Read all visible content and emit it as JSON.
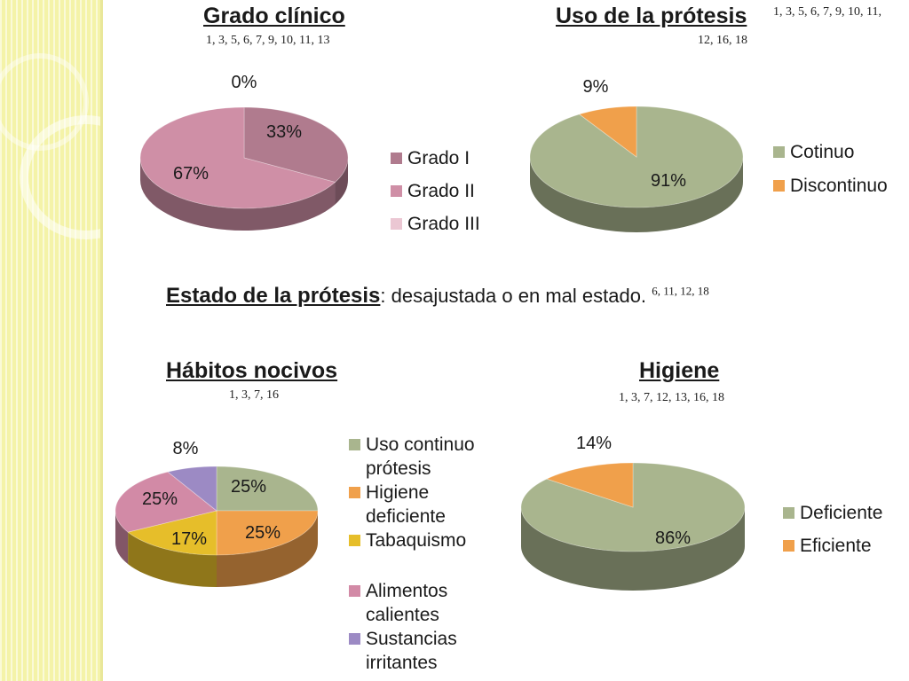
{
  "chart_data": [
    {
      "id": "grado",
      "type": "pie",
      "title": "Grado clínico",
      "refs": "1, 3, 5, 6, 7, 9, 10, 11, 13",
      "categories": [
        "Grado I",
        "Grado II",
        "Grado III"
      ],
      "values": [
        33,
        67,
        0
      ],
      "value_labels": [
        "33%",
        "67%",
        "0%"
      ],
      "colors": [
        "#b07b8e",
        "#cf8fa6",
        "#ebc7d3"
      ],
      "legend": "right"
    },
    {
      "id": "uso",
      "type": "pie",
      "title": "Uso de la prótesis",
      "refs": "1, 3, 5, 6, 7, 9, 10, 11,",
      "refs2": "12, 16, 18",
      "categories": [
        "Cotinuo",
        "Discontinuo"
      ],
      "values": [
        91,
        9
      ],
      "value_labels": [
        "91%",
        "9%"
      ],
      "colors": [
        "#a9b58e",
        "#f0a04b"
      ],
      "legend": "right"
    },
    {
      "id": "habitos",
      "type": "pie",
      "title": "Hábitos nocivos",
      "refs": "1, 3, 7, 16",
      "categories": [
        "Uso continuo prótesis",
        "Higiene deficiente",
        "Tabaquismo",
        "Alimentos calientes",
        "Sustancias irritantes"
      ],
      "values": [
        25,
        25,
        17,
        25,
        8
      ],
      "value_labels": [
        "25%",
        "25%",
        "17%",
        "25%",
        "8%"
      ],
      "colors": [
        "#a9b58e",
        "#f0a04b",
        "#e6be2a",
        "#d28aa6",
        "#9c8ac4"
      ],
      "legend": "right"
    },
    {
      "id": "higiene",
      "type": "pie",
      "title": "Higiene",
      "refs": "1, 3, 7, 12, 13, 16, 18",
      "categories": [
        "Deficiente",
        "Eficiente"
      ],
      "values": [
        86,
        14
      ],
      "value_labels": [
        "86%",
        "14%"
      ],
      "colors": [
        "#a9b58e",
        "#f0a04b"
      ],
      "legend": "right"
    }
  ],
  "estado": {
    "label": "Estado de la prótesis",
    "text": ": desajustada o en mal estado.",
    "refs": "6, 11, 12, 18"
  }
}
